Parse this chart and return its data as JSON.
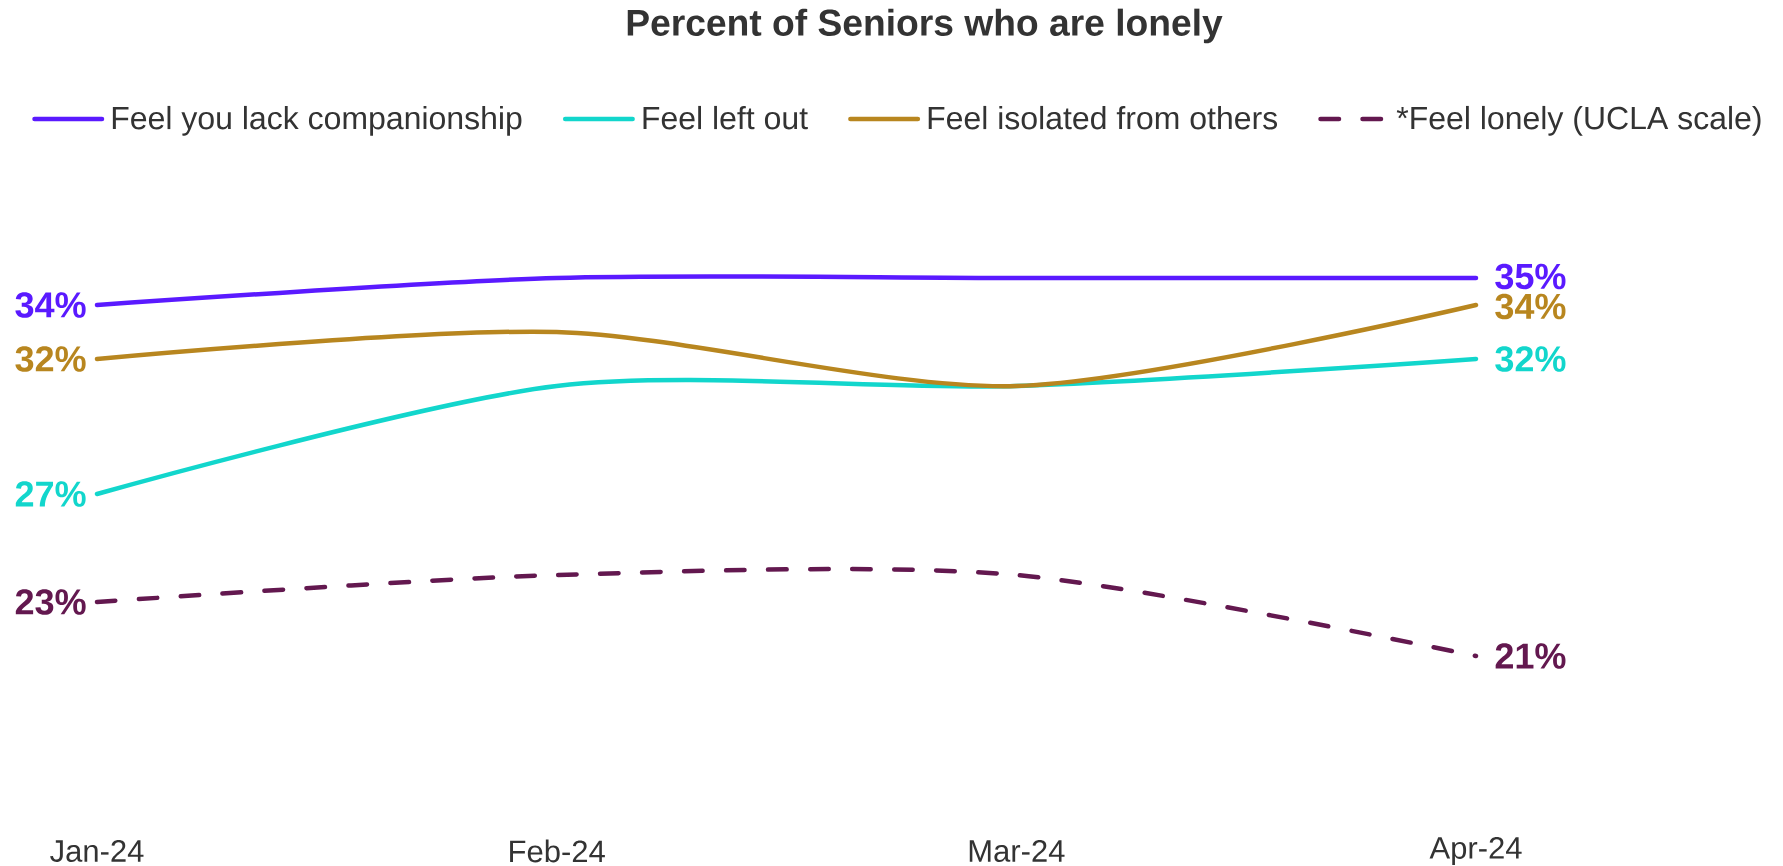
{
  "chart_data": {
    "type": "line",
    "title": "Percent of Seniors who are lonely",
    "categories": [
      "Jan-24",
      "Feb-24",
      "Mar-24",
      "Apr-24"
    ],
    "series": [
      {
        "name": "Feel you lack companionship",
        "color": "#5a1aff",
        "values": [
          34,
          35,
          35,
          35
        ],
        "value_labels": [
          "34%",
          null,
          null,
          "35%"
        ]
      },
      {
        "name": "Feel left out",
        "color": "#12d6cc",
        "values": [
          27,
          31,
          31,
          32
        ],
        "value_labels": [
          "27%",
          null,
          null,
          "32%"
        ]
      },
      {
        "name": "Feel isolated from others",
        "color": "#b8861f",
        "values": [
          32,
          33,
          31,
          34
        ],
        "value_labels": [
          "32%",
          null,
          null,
          "34%"
        ]
      },
      {
        "name": "*Feel lonely (UCLA scale)",
        "color": "#63184f",
        "values": [
          23,
          24,
          24,
          21
        ],
        "value_labels": [
          "23%",
          null,
          null,
          "21%"
        ],
        "line_style": "dashed"
      }
    ],
    "tick_labels": "x",
    "legend": "top",
    "line_style": "solid"
  }
}
